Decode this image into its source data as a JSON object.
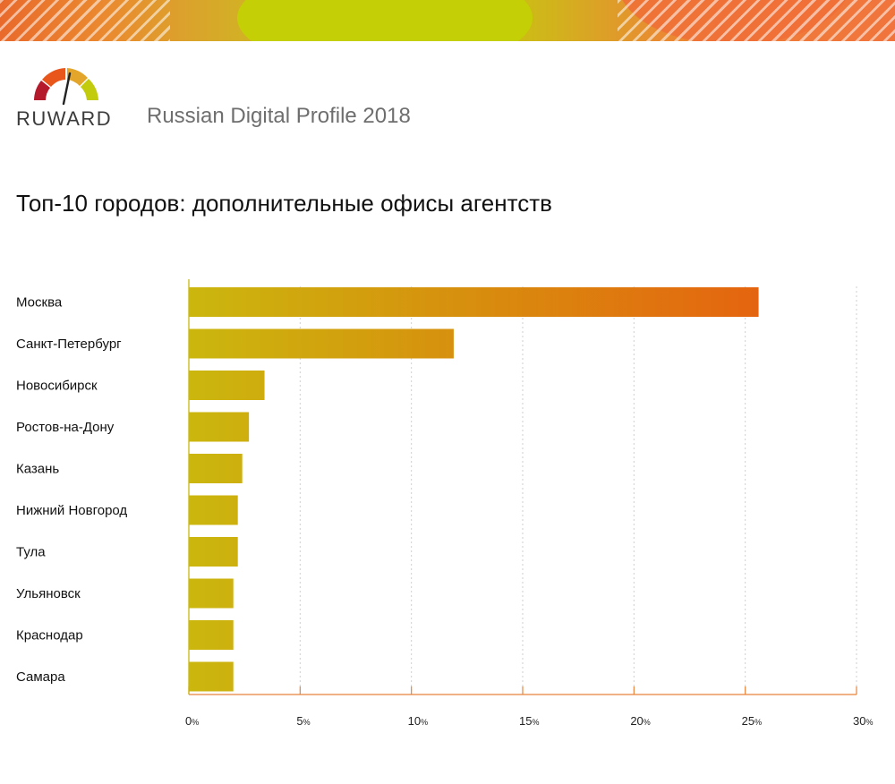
{
  "header": {
    "brand": "RUWARD",
    "report_title": "Russian Digital Profile 2018"
  },
  "colors": {
    "bar_start": "#cbb70e",
    "bar_end": "#e9560f",
    "axis": "#e8833a",
    "grid": "#cfcfcf"
  },
  "chart_data": {
    "type": "bar",
    "orientation": "horizontal",
    "title": "Топ-10 городов: дополнительные офисы агентств",
    "categories": [
      "Москва",
      "Санкт-Петербург",
      "Новосибирск",
      "Ростов-на-Дону",
      "Казань",
      "Нижний Новгород",
      "Тула",
      "Ульяновск",
      "Краснодар",
      "Самара"
    ],
    "values": [
      25.6,
      11.9,
      3.4,
      2.7,
      2.4,
      2.2,
      2.2,
      2.0,
      2.0,
      2.0
    ],
    "unit": "%",
    "xlim": [
      0,
      30
    ],
    "xticks": [
      0,
      5,
      10,
      15,
      20,
      25,
      30
    ],
    "grid": true,
    "legend": "none"
  }
}
